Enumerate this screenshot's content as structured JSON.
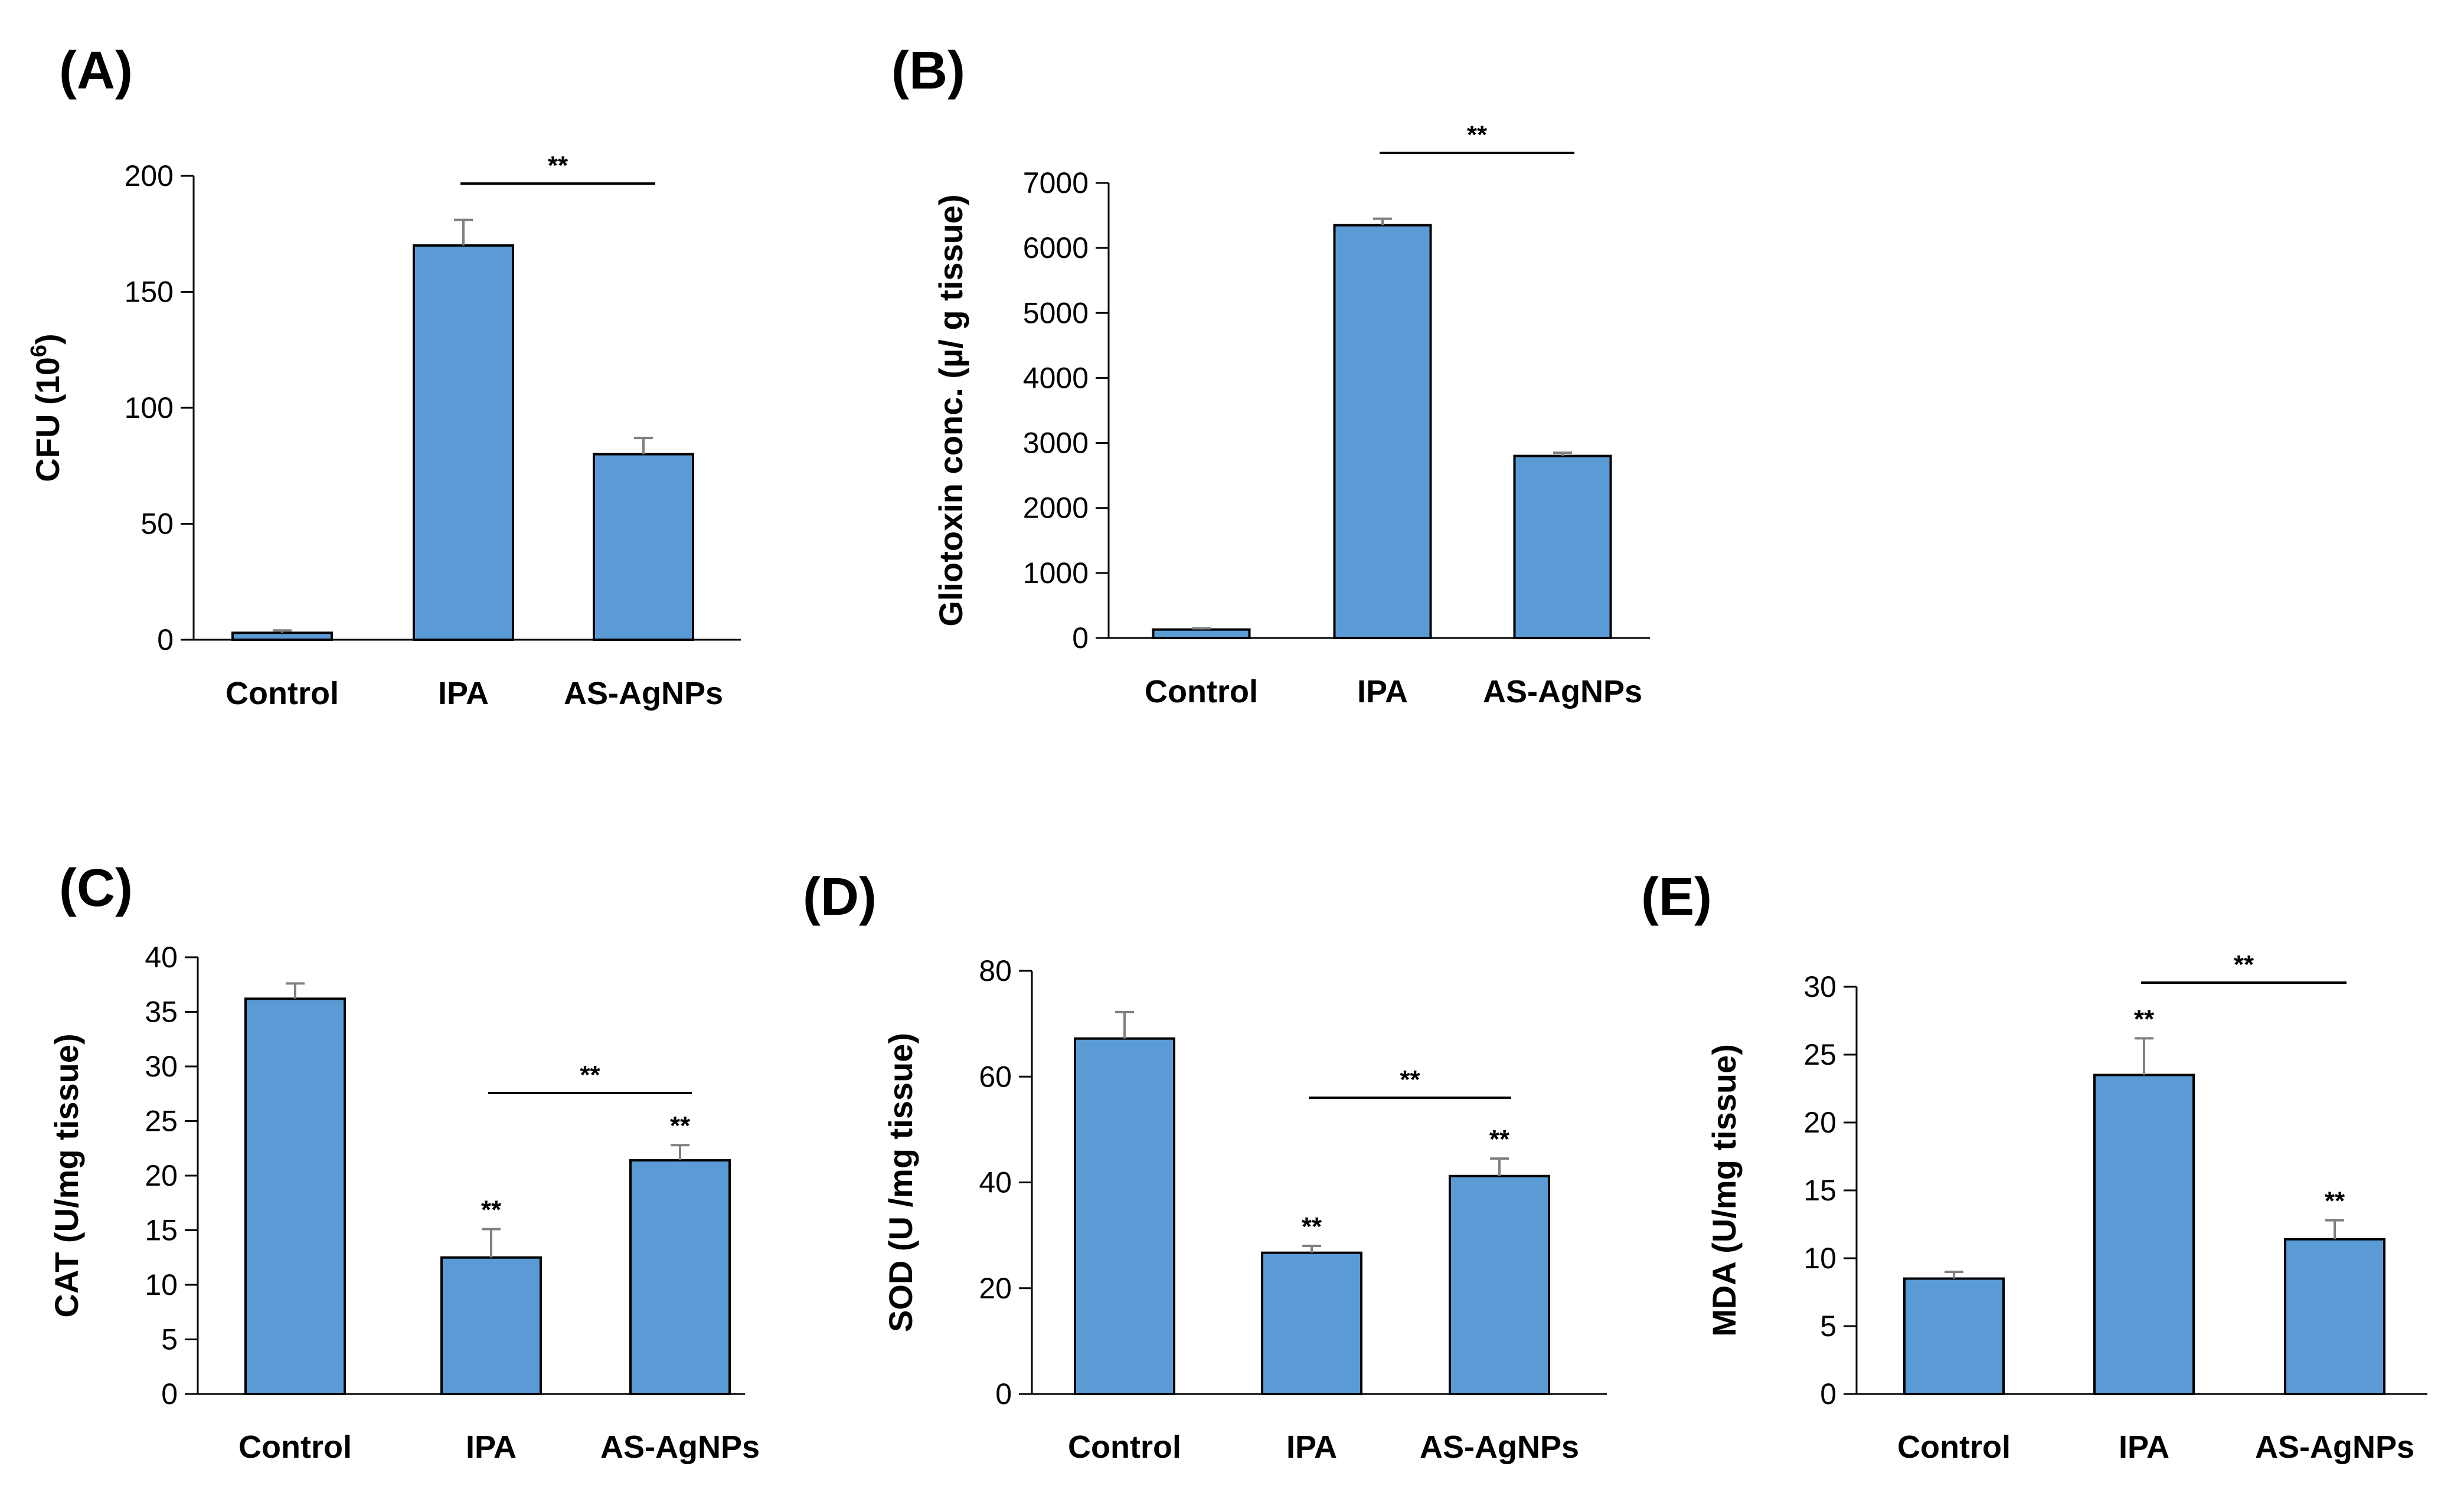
{
  "chart_data": [
    {
      "type": "bar",
      "panel": "(A)",
      "categories": [
        "Control",
        "IPA",
        "AS-AgNPs"
      ],
      "values": [
        3,
        170,
        80
      ],
      "errors": [
        1,
        11,
        7
      ],
      "ylabel": "CFU  (10",
      "ylabel_superscript": "6",
      "ylabel_suffix": ")",
      "ylim": [
        0,
        200
      ],
      "yticks": [
        "0",
        "50",
        "100",
        "150",
        "200"
      ],
      "bar_sig": [],
      "bracket": {
        "from": 1,
        "to": 2,
        "label": "**"
      },
      "bar_color": "#5B9BD5"
    },
    {
      "type": "bar",
      "panel": "(B)",
      "categories": [
        "Control",
        "IPA",
        "AS-AgNPs"
      ],
      "values": [
        130,
        6350,
        2800
      ],
      "errors": [
        20,
        100,
        50
      ],
      "ylabel": "Gliotoxin conc.  (µ/ g tissue)",
      "ylim": [
        0,
        7000
      ],
      "yticks": [
        "0",
        "1000",
        "2000",
        "3000",
        "4000",
        "5000",
        "6000",
        "7000"
      ],
      "bar_sig": [],
      "bracket": {
        "from": 1,
        "to": 2,
        "label": "**"
      },
      "bar_color": "#5B9BD5"
    },
    {
      "type": "bar",
      "panel": "(C)",
      "categories": [
        "Control",
        "IPA",
        "AS-AgNPs"
      ],
      "values": [
        36.2,
        12.5,
        21.4
      ],
      "errors": [
        1.4,
        2.6,
        1.4
      ],
      "ylabel": "CAT (U/mg tissue)",
      "ylim": [
        0,
        40
      ],
      "yticks": [
        "0",
        "5",
        "10",
        "15",
        "20",
        "25",
        "30",
        "35",
        "40"
      ],
      "bar_sig": [
        "",
        "**",
        "**"
      ],
      "bracket": {
        "from": 1,
        "to": 2,
        "label": "**"
      },
      "bar_color": "#5B9BD5"
    },
    {
      "type": "bar",
      "panel": "(D)",
      "categories": [
        "Control",
        "IPA",
        "AS-AgNPs"
      ],
      "values": [
        67.2,
        26.7,
        41.2
      ],
      "errors": [
        5,
        1.3,
        3.3
      ],
      "ylabel": "SOD (U /mg tissue)",
      "ylim": [
        0,
        80
      ],
      "yticks": [
        "0",
        "20",
        "40",
        "60",
        "80"
      ],
      "bar_sig": [
        "",
        "**",
        "**"
      ],
      "bracket": {
        "from": 1,
        "to": 2,
        "label": "**"
      },
      "bar_color": "#5B9BD5"
    },
    {
      "type": "bar",
      "panel": "(E)",
      "categories": [
        "Control",
        "IPA",
        "AS-AgNPs"
      ],
      "values": [
        8.5,
        23.5,
        11.4
      ],
      "errors": [
        0.5,
        2.7,
        1.4
      ],
      "ylabel": "MDA (U/mg tissue)",
      "ylim": [
        0,
        30
      ],
      "yticks": [
        "0",
        "5",
        "10",
        "15",
        "20",
        "25",
        "30"
      ],
      "bar_sig": [
        "",
        "**",
        "**"
      ],
      "bracket": {
        "from": 1,
        "to": 2,
        "label": "**"
      },
      "bar_color": "#5B9BD5"
    }
  ]
}
